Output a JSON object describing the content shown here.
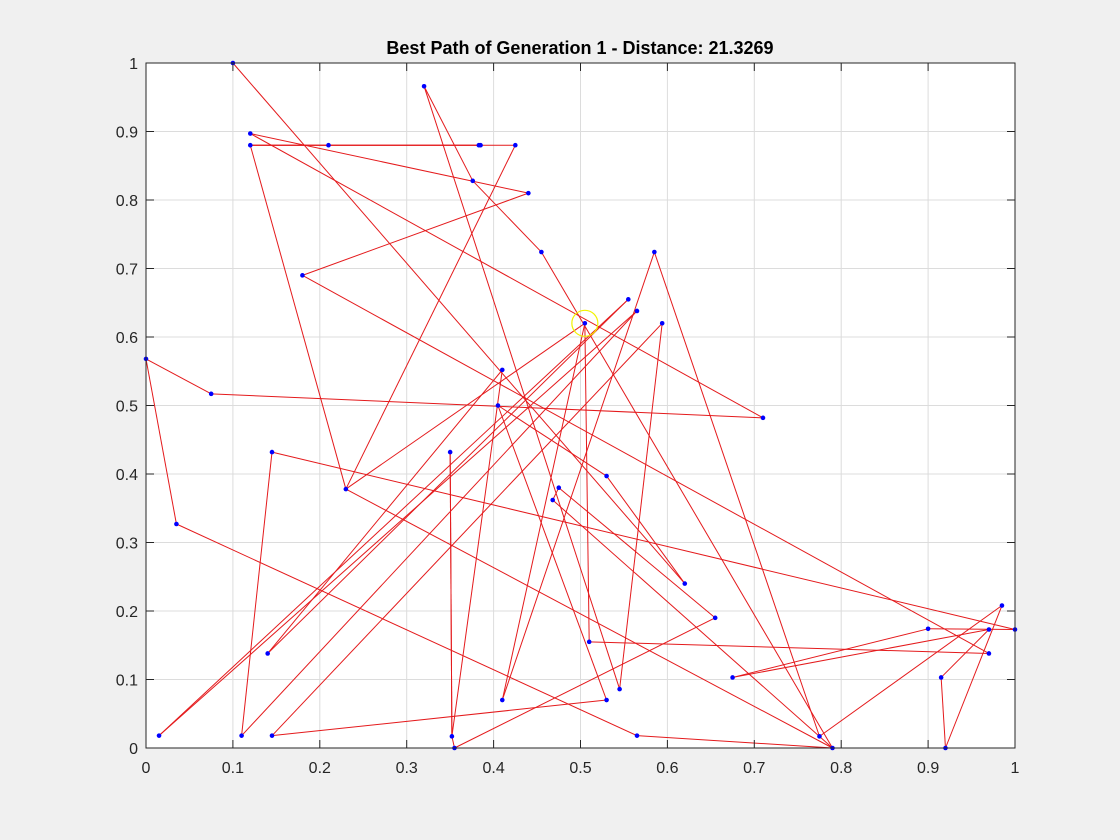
{
  "chart_data": {
    "type": "line",
    "title": "Best Path of Generation 1 - Distance: 21.3269",
    "xlabel": "",
    "ylabel": "",
    "xlim": [
      0,
      1
    ],
    "ylim": [
      0,
      1
    ],
    "xticks": [
      "0",
      "0.1",
      "0.2",
      "0.3",
      "0.4",
      "0.5",
      "0.6",
      "0.7",
      "0.8",
      "0.9",
      "1"
    ],
    "yticks": [
      "0",
      "0.1",
      "0.2",
      "0.3",
      "0.4",
      "0.5",
      "0.6",
      "0.7",
      "0.8",
      "0.9",
      "1"
    ],
    "grid": true,
    "path_color": "#e41a1c",
    "point_color": "#0000ff",
    "highlight_color": "#f2f200",
    "highlight_point": [
      0.505,
      0.62
    ],
    "path": [
      [
        0.505,
        0.62
      ],
      [
        0.51,
        0.155
      ],
      [
        0.97,
        0.138
      ],
      [
        0.18,
        0.69
      ],
      [
        0.44,
        0.81
      ],
      [
        0.12,
        0.897
      ],
      [
        0.71,
        0.482
      ],
      [
        0.075,
        0.517
      ],
      [
        0.0,
        0.568
      ],
      [
        0.035,
        0.327
      ],
      [
        0.565,
        0.018
      ],
      [
        0.79,
        0.0
      ],
      [
        0.23,
        0.378
      ],
      [
        0.425,
        0.88
      ],
      [
        0.12,
        0.88
      ],
      [
        0.385,
        0.88
      ],
      [
        0.383,
        0.88
      ],
      [
        0.21,
        0.88
      ],
      [
        0.12,
        0.88
      ],
      [
        0.23,
        0.378
      ],
      [
        0.505,
        0.62
      ],
      [
        0.41,
        0.07
      ],
      [
        0.585,
        0.724
      ],
      [
        0.775,
        0.017
      ],
      [
        0.985,
        0.208
      ],
      [
        0.92,
        0.0
      ],
      [
        0.915,
        0.103
      ],
      [
        0.97,
        0.173
      ],
      [
        0.675,
        0.103
      ],
      [
        0.9,
        0.174
      ],
      [
        1.0,
        0.173
      ],
      [
        0.145,
        0.432
      ],
      [
        0.11,
        0.018
      ],
      [
        0.565,
        0.638
      ],
      [
        0.015,
        0.018
      ],
      [
        0.555,
        0.655
      ],
      [
        0.14,
        0.138
      ],
      [
        0.41,
        0.552
      ],
      [
        0.352,
        0.017
      ],
      [
        0.35,
        0.432
      ],
      [
        0.352,
        0.017
      ],
      [
        0.355,
        0.0
      ],
      [
        0.655,
        0.19
      ],
      [
        0.475,
        0.38
      ],
      [
        0.468,
        0.362
      ],
      [
        0.79,
        0.0
      ],
      [
        0.455,
        0.724
      ],
      [
        0.376,
        0.828
      ],
      [
        0.32,
        0.966
      ],
      [
        0.545,
        0.086
      ],
      [
        0.594,
        0.62
      ],
      [
        0.145,
        0.018
      ],
      [
        0.53,
        0.07
      ],
      [
        0.405,
        0.5
      ],
      [
        0.53,
        0.397
      ],
      [
        0.62,
        0.24
      ],
      [
        0.1,
        1.0
      ]
    ]
  }
}
